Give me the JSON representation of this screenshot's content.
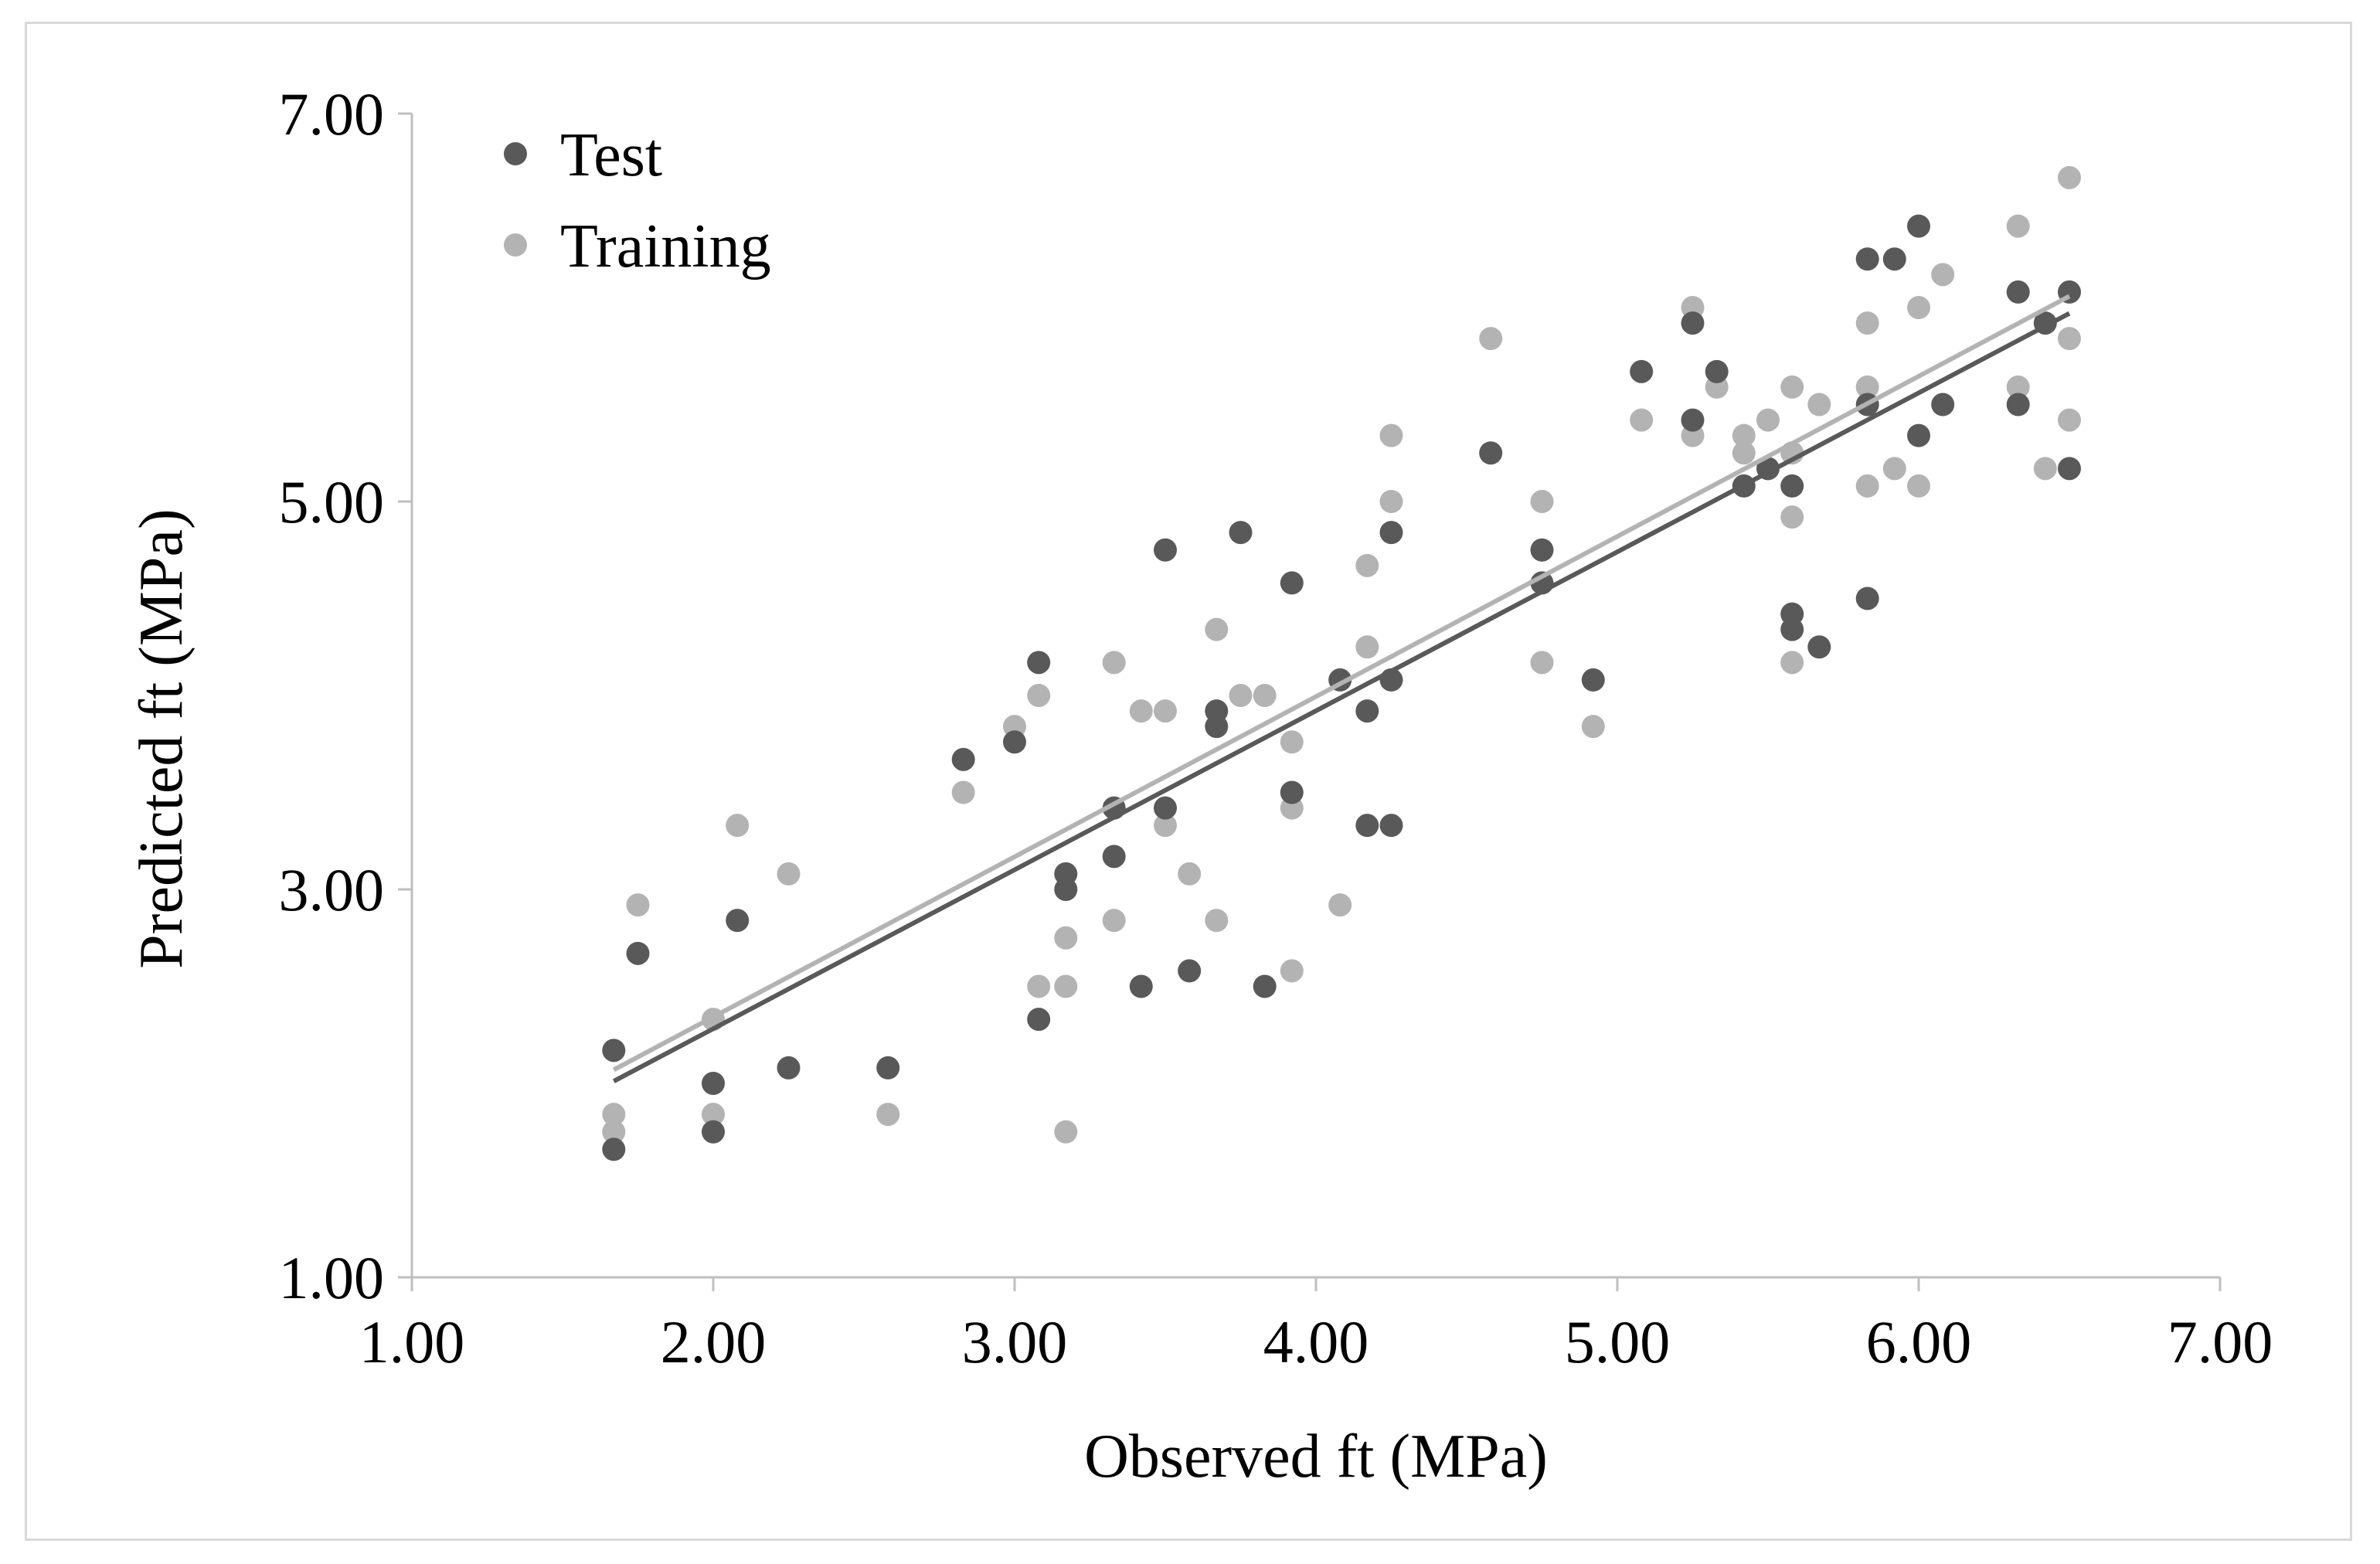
{
  "chart_data": {
    "type": "scatter",
    "title": "",
    "xlabel": "Observed ft (MPa)",
    "ylabel": "Predicted ft (MPa)",
    "xlim": [
      1.0,
      7.0
    ],
    "ylim": [
      1.0,
      7.0
    ],
    "x_ticks": [
      "1.00",
      "2.00",
      "3.00",
      "4.00",
      "5.00",
      "6.00",
      "7.00"
    ],
    "y_ticks": [
      "1.00",
      "3.00",
      "5.00",
      "7.00"
    ],
    "legend": {
      "placement": "top-left"
    },
    "colors": {
      "test": "#595959",
      "training": "#b3b3b3",
      "axis": "#bfbfbf"
    },
    "series": [
      {
        "name": "Test",
        "points": [
          [
            1.67,
            2.17
          ],
          [
            1.67,
            1.66
          ],
          [
            1.75,
            2.67
          ],
          [
            2.0,
            2.0
          ],
          [
            2.0,
            1.75
          ],
          [
            2.08,
            2.84
          ],
          [
            2.25,
            2.08
          ],
          [
            2.58,
            2.08
          ],
          [
            2.83,
            3.67
          ],
          [
            3.0,
            3.76
          ],
          [
            3.08,
            4.17
          ],
          [
            3.08,
            2.33
          ],
          [
            3.17,
            3.08
          ],
          [
            3.17,
            3.0
          ],
          [
            3.33,
            3.42
          ],
          [
            3.33,
            3.17
          ],
          [
            3.42,
            2.5
          ],
          [
            3.5,
            4.75
          ],
          [
            3.5,
            3.42
          ],
          [
            3.58,
            2.58
          ],
          [
            3.67,
            3.92
          ],
          [
            3.67,
            3.84
          ],
          [
            3.75,
            4.84
          ],
          [
            3.83,
            2.5
          ],
          [
            3.92,
            4.58
          ],
          [
            3.92,
            3.5
          ],
          [
            4.08,
            4.08
          ],
          [
            4.17,
            3.92
          ],
          [
            4.17,
            3.33
          ],
          [
            4.25,
            4.84
          ],
          [
            4.25,
            4.08
          ],
          [
            4.25,
            3.33
          ],
          [
            4.58,
            5.25
          ],
          [
            4.75,
            4.75
          ],
          [
            4.75,
            4.58
          ],
          [
            4.92,
            4.08
          ],
          [
            5.08,
            5.67
          ],
          [
            5.25,
            5.92
          ],
          [
            5.25,
            5.42
          ],
          [
            5.33,
            5.67
          ],
          [
            5.42,
            5.08
          ],
          [
            5.5,
            5.17
          ],
          [
            5.58,
            5.08
          ],
          [
            5.58,
            4.42
          ],
          [
            5.58,
            4.34
          ],
          [
            5.67,
            4.25
          ],
          [
            5.83,
            6.25
          ],
          [
            5.83,
            5.5
          ],
          [
            5.83,
            4.5
          ],
          [
            5.92,
            6.25
          ],
          [
            6.0,
            6.42
          ],
          [
            6.0,
            5.34
          ],
          [
            6.08,
            5.5
          ],
          [
            6.33,
            6.08
          ],
          [
            6.33,
            5.5
          ],
          [
            6.42,
            5.92
          ],
          [
            6.5,
            6.08
          ],
          [
            6.5,
            5.17
          ]
        ],
        "trendline": {
          "slope": 0.8196,
          "intercept": 0.6424
        }
      },
      {
        "name": "Training",
        "points": [
          [
            1.67,
            1.84
          ],
          [
            1.67,
            1.75
          ],
          [
            1.75,
            2.92
          ],
          [
            2.0,
            2.33
          ],
          [
            2.0,
            1.84
          ],
          [
            2.08,
            3.33
          ],
          [
            2.25,
            3.08
          ],
          [
            2.58,
            1.84
          ],
          [
            2.83,
            3.5
          ],
          [
            3.0,
            3.84
          ],
          [
            3.08,
            4.0
          ],
          [
            3.08,
            2.5
          ],
          [
            3.17,
            2.75
          ],
          [
            3.17,
            2.5
          ],
          [
            3.17,
            1.75
          ],
          [
            3.33,
            4.17
          ],
          [
            3.33,
            2.84
          ],
          [
            3.42,
            3.92
          ],
          [
            3.5,
            3.92
          ],
          [
            3.5,
            3.33
          ],
          [
            3.58,
            3.08
          ],
          [
            3.67,
            4.34
          ],
          [
            3.67,
            2.84
          ],
          [
            3.75,
            4.0
          ],
          [
            3.83,
            4.0
          ],
          [
            3.92,
            3.76
          ],
          [
            3.92,
            3.42
          ],
          [
            3.92,
            2.58
          ],
          [
            4.08,
            2.92
          ],
          [
            4.17,
            4.67
          ],
          [
            4.17,
            4.25
          ],
          [
            4.25,
            5.34
          ],
          [
            4.25,
            5.0
          ],
          [
            4.58,
            5.84
          ],
          [
            4.75,
            5.0
          ],
          [
            4.75,
            4.17
          ],
          [
            4.92,
            3.84
          ],
          [
            5.08,
            5.42
          ],
          [
            5.25,
            6.0
          ],
          [
            5.25,
            5.34
          ],
          [
            5.33,
            5.59
          ],
          [
            5.42,
            5.34
          ],
          [
            5.42,
            5.25
          ],
          [
            5.5,
            5.42
          ],
          [
            5.58,
            5.59
          ],
          [
            5.58,
            5.25
          ],
          [
            5.58,
            4.92
          ],
          [
            5.58,
            4.17
          ],
          [
            5.67,
            5.5
          ],
          [
            5.83,
            5.92
          ],
          [
            5.83,
            5.59
          ],
          [
            5.83,
            5.08
          ],
          [
            5.92,
            5.17
          ],
          [
            6.0,
            6.0
          ],
          [
            6.0,
            5.08
          ],
          [
            6.08,
            6.17
          ],
          [
            6.33,
            6.42
          ],
          [
            6.33,
            5.59
          ],
          [
            6.42,
            5.17
          ],
          [
            6.5,
            6.67
          ],
          [
            6.5,
            5.84
          ],
          [
            6.5,
            5.42
          ]
        ],
        "trendline": {
          "slope": 0.8258,
          "intercept": 0.6908
        }
      }
    ]
  }
}
